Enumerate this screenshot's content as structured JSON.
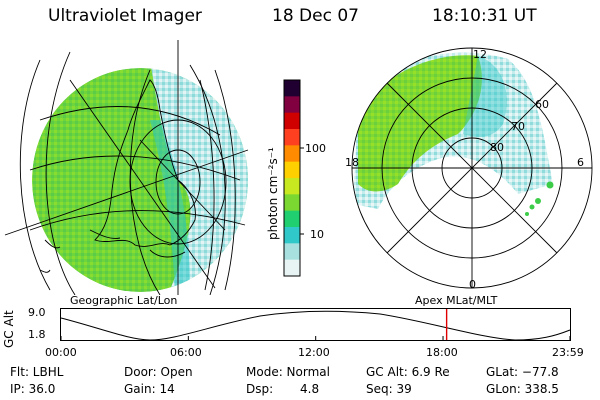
{
  "header": {
    "title": "Ultraviolet Imager",
    "date": "18 Dec 07",
    "time": "18:10:31 UT"
  },
  "colorbar": {
    "label": "photon cm⁻²s⁻¹",
    "ticks": [
      "100",
      "10"
    ],
    "colors": [
      "#e8f4f4",
      "#a8e0e0",
      "#30c8c8",
      "#20d070",
      "#7ad830",
      "#c8e820",
      "#ffd000",
      "#ff8c00",
      "#ff4020",
      "#d00000",
      "#800040",
      "#200030"
    ]
  },
  "polar_plot": {
    "rings": [
      "60",
      "70",
      "80"
    ],
    "mlt_labels": {
      "top": "12",
      "left": "18",
      "right": "6",
      "bottom": "0"
    }
  },
  "maps": {
    "left_caption": "Geographic Lat/Lon",
    "right_caption": "Apex MLat/MLT"
  },
  "altitude_panel": {
    "ylabel": "GC Alt",
    "yticks": [
      "9.0",
      "1.8"
    ],
    "xticks": [
      "00:00",
      "06:00",
      "12:00",
      "18:00",
      "23:59"
    ],
    "marker_time_hours": 18.17,
    "marker_color": "#e00000"
  },
  "info": {
    "row1": {
      "filter": "Flt: LBHL",
      "door": "Door: Open",
      "mode": "Mode: Normal",
      "gc_alt": "GC Alt: 6.9 Re",
      "glat": "GLat: −77.8"
    },
    "row2": {
      "ip": "IP: 36.0",
      "gain": "Gain: 14",
      "dsp_label": "Dsp:",
      "dsp_value": "4.8",
      "seq": "Seq: 39",
      "glon": "GLon: 338.5"
    }
  }
}
